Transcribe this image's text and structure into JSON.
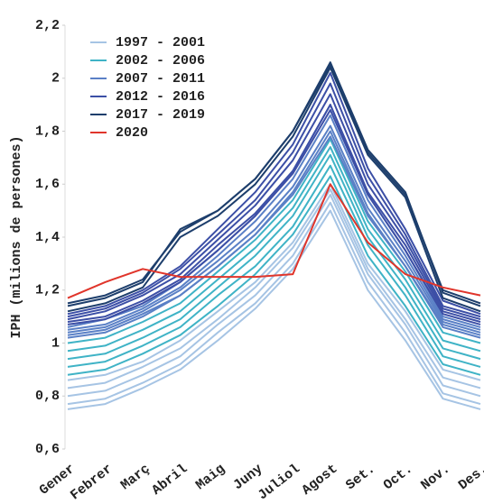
{
  "chart_data": {
    "type": "line",
    "y_label": "IPH (milions de persones)",
    "categories": [
      "Gener",
      "Febrer",
      "Març",
      "Abril",
      "Maig",
      "Juny",
      "Juliol",
      "Agost",
      "Set.",
      "Oct.",
      "Nov.",
      "Des."
    ],
    "ylim": [
      0.6,
      2.2
    ],
    "yticks": [
      {
        "value": 0.6,
        "label": "0,6"
      },
      {
        "value": 0.8,
        "label": "0,8"
      },
      1,
      {
        "value": 1.2,
        "label": "1,2"
      },
      {
        "value": 1.4,
        "label": "1,4"
      },
      {
        "value": 1.6,
        "label": "1,6"
      },
      {
        "value": 1.8,
        "label": "1,8"
      },
      2,
      {
        "value": 2.2,
        "label": "2,2"
      }
    ],
    "grid": false,
    "legend": "top-left",
    "series": [
      {
        "name": "1997 - 2001",
        "color": "#a6c4e4",
        "lines": [
          [
            0.75,
            0.77,
            0.83,
            0.9,
            1.01,
            1.13,
            1.28,
            1.5,
            1.2,
            1.01,
            0.79,
            0.75
          ],
          [
            0.77,
            0.79,
            0.85,
            0.92,
            1.04,
            1.15,
            1.3,
            1.53,
            1.23,
            1.04,
            0.81,
            0.77
          ],
          [
            0.8,
            0.82,
            0.88,
            0.95,
            1.07,
            1.18,
            1.33,
            1.56,
            1.26,
            1.07,
            0.84,
            0.8
          ],
          [
            0.83,
            0.85,
            0.91,
            0.98,
            1.09,
            1.21,
            1.36,
            1.58,
            1.28,
            1.09,
            0.87,
            0.83
          ],
          [
            0.86,
            0.88,
            0.93,
            1.01,
            1.12,
            1.23,
            1.38,
            1.6,
            1.3,
            1.12,
            0.9,
            0.86
          ]
        ]
      },
      {
        "name": "2002 - 2006",
        "color": "#3fb3c6",
        "lines": [
          [
            0.88,
            0.9,
            0.96,
            1.03,
            1.14,
            1.26,
            1.41,
            1.63,
            1.33,
            1.14,
            0.92,
            0.88
          ],
          [
            0.91,
            0.93,
            0.99,
            1.06,
            1.18,
            1.29,
            1.44,
            1.67,
            1.37,
            1.18,
            0.95,
            0.91
          ],
          [
            0.94,
            0.96,
            1.02,
            1.09,
            1.21,
            1.33,
            1.48,
            1.71,
            1.4,
            1.21,
            0.98,
            0.94
          ],
          [
            0.97,
            0.99,
            1.05,
            1.12,
            1.24,
            1.36,
            1.51,
            1.74,
            1.43,
            1.24,
            1.01,
            0.97
          ],
          [
            1.0,
            1.02,
            1.08,
            1.15,
            1.27,
            1.39,
            1.54,
            1.77,
            1.46,
            1.27,
            1.04,
            1.0
          ]
        ]
      },
      {
        "name": "2007 - 2011",
        "color": "#5a80c6",
        "lines": [
          [
            1.02,
            1.04,
            1.1,
            1.18,
            1.29,
            1.41,
            1.57,
            1.8,
            1.49,
            1.29,
            1.06,
            1.02
          ],
          [
            1.03,
            1.05,
            1.11,
            1.18,
            1.29,
            1.41,
            1.56,
            1.78,
            1.48,
            1.29,
            1.07,
            1.03
          ],
          [
            1.04,
            1.06,
            1.12,
            1.2,
            1.31,
            1.43,
            1.59,
            1.82,
            1.51,
            1.31,
            1.08,
            1.04
          ],
          [
            1.05,
            1.07,
            1.13,
            1.21,
            1.33,
            1.46,
            1.62,
            1.86,
            1.54,
            1.33,
            1.09,
            1.05
          ],
          [
            1.06,
            1.09,
            1.14,
            1.23,
            1.35,
            1.48,
            1.65,
            1.9,
            1.56,
            1.35,
            1.1,
            1.06
          ]
        ]
      },
      {
        "name": "2012 - 2016",
        "color": "#3c4fa6",
        "lines": [
          [
            1.07,
            1.09,
            1.15,
            1.23,
            1.35,
            1.48,
            1.64,
            1.88,
            1.56,
            1.35,
            1.11,
            1.07
          ],
          [
            1.08,
            1.1,
            1.16,
            1.24,
            1.37,
            1.49,
            1.65,
            1.9,
            1.57,
            1.37,
            1.12,
            1.08
          ],
          [
            1.09,
            1.12,
            1.18,
            1.26,
            1.39,
            1.52,
            1.69,
            1.94,
            1.6,
            1.39,
            1.13,
            1.09
          ],
          [
            1.1,
            1.13,
            1.19,
            1.28,
            1.41,
            1.54,
            1.72,
            1.98,
            1.63,
            1.41,
            1.14,
            1.1
          ],
          [
            1.11,
            1.14,
            1.2,
            1.29,
            1.43,
            1.57,
            1.75,
            2.02,
            1.66,
            1.43,
            1.16,
            1.11
          ]
        ]
      },
      {
        "name": "2017 - 2019",
        "color": "#1d3e6c",
        "lines": [
          [
            1.12,
            1.15,
            1.21,
            1.4,
            1.48,
            1.6,
            1.78,
            2.04,
            1.71,
            1.55,
            1.17,
            1.12
          ],
          [
            1.14,
            1.17,
            1.23,
            1.43,
            1.5,
            1.62,
            1.8,
            2.06,
            1.73,
            1.57,
            1.19,
            1.14
          ],
          [
            1.15,
            1.18,
            1.24,
            1.42,
            1.5,
            1.62,
            1.8,
            2.05,
            1.72,
            1.56,
            1.2,
            1.15
          ]
        ]
      },
      {
        "name": "2020",
        "color": "#e0352b",
        "lines": [
          [
            1.17,
            1.23,
            1.28,
            1.25,
            1.25,
            1.25,
            1.26,
            1.6,
            1.38,
            1.26,
            1.21,
            1.18
          ]
        ]
      }
    ]
  }
}
